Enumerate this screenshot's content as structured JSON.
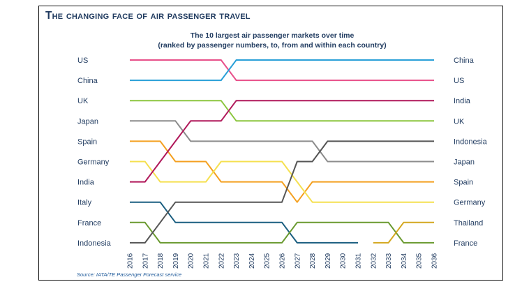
{
  "title": "The changing face of air passenger travel",
  "subtitle_line1": "The 10 largest air passenger markets over time",
  "subtitle_line2": "(ranked by passenger numbers, to, from and within each country)",
  "source": "Source: IATA/TE Passenger Forecast service",
  "chart_data": {
    "type": "line",
    "x": [
      2016,
      2017,
      2018,
      2019,
      2020,
      2021,
      2022,
      2023,
      2024,
      2025,
      2026,
      2027,
      2028,
      2029,
      2030,
      2031,
      2032,
      2033,
      2034,
      2035,
      2036
    ],
    "y_meaning": "rank (1 = largest market)",
    "ylim": [
      1,
      10
    ],
    "grid": false,
    "left_labels": [
      "US",
      "China",
      "UK",
      "Japan",
      "Spain",
      "Germany",
      "India",
      "Italy",
      "France",
      "Indonesia"
    ],
    "right_labels": [
      "China",
      "US",
      "India",
      "UK",
      "Indonesia",
      "Japan",
      "Spain",
      "Germany",
      "Thailand",
      "France"
    ],
    "series": [
      {
        "name": "US",
        "color": "#e8508a",
        "values": [
          1,
          1,
          1,
          1,
          1,
          1,
          1,
          2,
          2,
          2,
          2,
          2,
          2,
          2,
          2,
          2,
          2,
          2,
          2,
          2,
          2
        ]
      },
      {
        "name": "China",
        "color": "#2aa0d8",
        "values": [
          2,
          2,
          2,
          2,
          2,
          2,
          2,
          1,
          1,
          1,
          1,
          1,
          1,
          1,
          1,
          1,
          1,
          1,
          1,
          1,
          1
        ]
      },
      {
        "name": "UK",
        "color": "#8cc63f",
        "values": [
          3,
          3,
          3,
          3,
          3,
          3,
          3,
          4,
          4,
          4,
          4,
          4,
          4,
          4,
          4,
          4,
          4,
          4,
          4,
          4,
          4
        ]
      },
      {
        "name": "Japan",
        "color": "#8c8c8c",
        "values": [
          4,
          4,
          4,
          4,
          5,
          5,
          5,
          5,
          5,
          5,
          5,
          5,
          5,
          6,
          6,
          6,
          6,
          6,
          6,
          6,
          6
        ]
      },
      {
        "name": "Spain",
        "color": "#f4a020",
        "values": [
          5,
          5,
          5,
          6,
          6,
          6,
          7,
          7,
          7,
          7,
          7,
          8,
          7,
          7,
          7,
          7,
          7,
          7,
          7,
          7,
          7
        ]
      },
      {
        "name": "Germany",
        "color": "#f5e050",
        "values": [
          6,
          6,
          7,
          7,
          7,
          7,
          6,
          6,
          6,
          6,
          6,
          7,
          8,
          8,
          8,
          8,
          8,
          8,
          8,
          8,
          8
        ]
      },
      {
        "name": "India",
        "color": "#b0185a",
        "values": [
          7,
          7,
          6,
          5,
          4,
          4,
          4,
          3,
          3,
          3,
          3,
          3,
          3,
          3,
          3,
          3,
          3,
          3,
          3,
          3,
          3
        ]
      },
      {
        "name": "Italy",
        "color": "#1a5e80",
        "values": [
          8,
          8,
          8,
          9,
          9,
          9,
          9,
          9,
          9,
          9,
          9,
          10,
          10,
          10,
          10,
          10,
          null,
          null,
          null,
          null,
          null
        ]
      },
      {
        "name": "France",
        "color": "#6a9a30",
        "values": [
          9,
          9,
          10,
          10,
          10,
          10,
          10,
          10,
          10,
          10,
          10,
          9,
          9,
          9,
          9,
          9,
          9,
          9,
          10,
          10,
          10
        ]
      },
      {
        "name": "Indonesia",
        "color": "#555555",
        "values": [
          10,
          10,
          9,
          8,
          8,
          8,
          8,
          8,
          8,
          8,
          8,
          6,
          6,
          5,
          5,
          5,
          5,
          5,
          5,
          5,
          5
        ]
      },
      {
        "name": "Thailand",
        "color": "#d4a820",
        "values": [
          null,
          null,
          null,
          null,
          null,
          null,
          null,
          null,
          null,
          null,
          null,
          null,
          null,
          null,
          null,
          null,
          10,
          10,
          9,
          9,
          9
        ]
      }
    ]
  }
}
